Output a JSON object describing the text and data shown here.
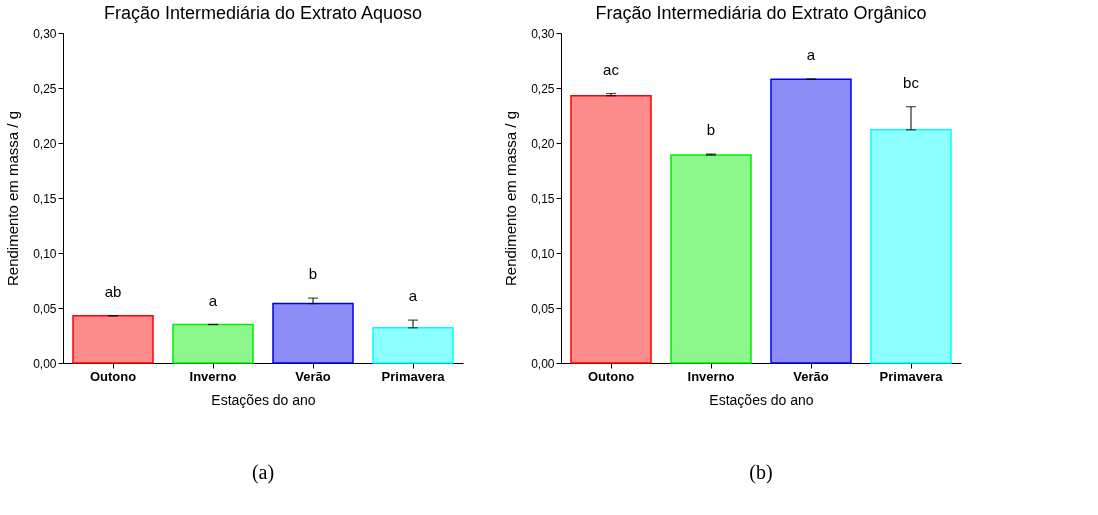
{
  "chart_data": [
    {
      "type": "bar",
      "title": "Fração Intermediária do Extrato Aquoso",
      "xlabel": "Estações do ano",
      "ylabel": "Rendimento em massa / g",
      "categories": [
        "Outono",
        "Inverno",
        "Verão",
        "Primavera"
      ],
      "values": [
        0.043,
        0.035,
        0.054,
        0.032
      ],
      "colors": [
        "#ff0000",
        "#00ee00",
        "#0000ee",
        "#00ffff"
      ],
      "errors": [
        [
          0.043,
          0.043
        ],
        [
          0.035,
          0.035
        ],
        [
          0.054,
          0.059
        ],
        [
          0.032,
          0.039
        ]
      ],
      "ylim": [
        0,
        0.3
      ],
      "yticks": [
        {
          "value": 0,
          "label": "0,00"
        },
        {
          "value": 0.05,
          "label": "0,05"
        },
        {
          "value": 0.1,
          "label": "0,10"
        },
        {
          "value": 0.15,
          "label": "0,15"
        },
        {
          "value": 0.2,
          "label": "0,20"
        },
        {
          "value": 0.25,
          "label": "0,25"
        },
        {
          "value": 0.3,
          "label": "0,30"
        }
      ],
      "grid": false,
      "annotations": [
        "ab",
        "a",
        "b",
        "a",
        "(a)"
      ]
    },
    {
      "type": "bar",
      "title": "Fração Intermediária do Extrato Orgânico",
      "xlabel": "Estações do ano",
      "ylabel": "Rendimento em massa / g",
      "categories": [
        "Outono",
        "Inverno",
        "Verão",
        "Primavera"
      ],
      "values": [
        0.243,
        0.189,
        0.258,
        0.212
      ],
      "colors": [
        "#ff0000",
        "#00ee00",
        "#0000ee",
        "#00ffff"
      ],
      "errors": [
        [
          0.243,
          0.245
        ],
        [
          0.189,
          0.19
        ],
        [
          0.258,
          0.258
        ],
        [
          0.212,
          0.233
        ]
      ],
      "ylim": [
        0,
        0.3
      ],
      "yticks": [
        {
          "value": 0,
          "label": "0,00"
        },
        {
          "value": 0.05,
          "label": "0,05"
        },
        {
          "value": 0.1,
          "label": "0,10"
        },
        {
          "value": 0.15,
          "label": "0,15"
        },
        {
          "value": 0.2,
          "label": "0,20"
        },
        {
          "value": 0.25,
          "label": "0,25"
        },
        {
          "value": 0.3,
          "label": "0,30"
        }
      ],
      "grid": false,
      "annotations": [
        "ac",
        "b",
        "a",
        "bc",
        "(b)"
      ]
    }
  ]
}
